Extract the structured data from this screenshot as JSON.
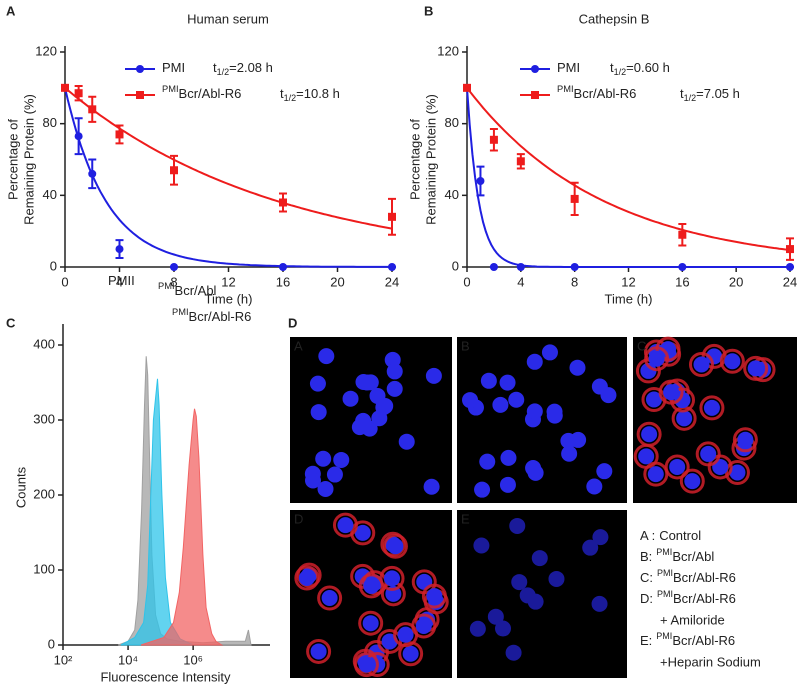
{
  "chart_data": [
    {
      "type": "line",
      "panel": "A",
      "title": "Human serum",
      "xlabel": "Time (h)",
      "ylabel": [
        "Percentage of",
        "Remaining Protein (%)"
      ],
      "xlim": [
        0,
        24
      ],
      "xticks": [
        0,
        4,
        8,
        12,
        16,
        20,
        24
      ],
      "ylim": [
        0,
        120
      ],
      "yticks": [
        0,
        40,
        80,
        120
      ],
      "series": [
        {
          "name": "PMI",
          "color": "#1f1fe0",
          "marker": "circle",
          "half_life": 2.08,
          "half_life_label": {
            "symbol": "t",
            "sub": "1/2",
            "text": "=2.08 h"
          },
          "x": [
            0,
            1,
            2,
            4,
            8,
            16,
            24
          ],
          "values": [
            100,
            73,
            52,
            10,
            0,
            0,
            0
          ],
          "errors": [
            0,
            10,
            8,
            5,
            0,
            0,
            0
          ]
        },
        {
          "name_prefix": "PMI",
          "name": "Bcr/Abl-R6",
          "color": "#ee1c1c",
          "marker": "square",
          "half_life": 10.8,
          "half_life_label": {
            "symbol": "t",
            "sub": "1/2",
            "text": "=10.8 h"
          },
          "x": [
            0,
            1,
            2,
            4,
            8,
            16,
            24
          ],
          "values": [
            100,
            97,
            88,
            74,
            54,
            36,
            28
          ],
          "errors": [
            0,
            4,
            7,
            5,
            8,
            5,
            10
          ]
        }
      ]
    },
    {
      "type": "line",
      "panel": "B",
      "title": "Cathepsin B",
      "xlabel": "Time (h)",
      "ylabel": [
        "Percentage of",
        "Remaining Protein (%)"
      ],
      "xlim": [
        0,
        24
      ],
      "xticks": [
        0,
        4,
        8,
        12,
        16,
        20,
        24
      ],
      "ylim": [
        0,
        120
      ],
      "yticks": [
        0,
        40,
        80,
        120
      ],
      "series": [
        {
          "name": "PMI",
          "color": "#1f1fe0",
          "marker": "circle",
          "half_life": 0.6,
          "half_life_label": {
            "symbol": "t",
            "sub": "1/2",
            "text": "=0.60 h"
          },
          "x": [
            0,
            1,
            2,
            4,
            8,
            16,
            24
          ],
          "values": [
            100,
            48,
            0,
            0,
            0,
            0,
            0
          ],
          "errors": [
            0,
            8,
            0,
            0,
            0,
            0,
            0
          ]
        },
        {
          "name_prefix": "PMI",
          "name": "Bcr/Abl-R6",
          "color": "#ee1c1c",
          "marker": "square",
          "half_life": 7.05,
          "half_life_label": {
            "symbol": "t",
            "sub": "1/2",
            "text": "=7.05 h"
          },
          "x": [
            0,
            2,
            4,
            8,
            16,
            24
          ],
          "values": [
            100,
            71,
            59,
            38,
            18,
            10
          ],
          "errors": [
            0,
            6,
            4,
            9,
            6,
            6
          ]
        }
      ]
    },
    {
      "type": "area",
      "panel": "C",
      "xlabel": "Fluorescence Intensity",
      "ylabel": [
        "Counts"
      ],
      "xscale": "log",
      "xlim": [
        100,
        200000000
      ],
      "xticks": [
        {
          "value": 100,
          "label": "10²"
        },
        {
          "value": 10000,
          "label": "10⁴"
        },
        {
          "value": 1000000,
          "label": "10⁶"
        }
      ],
      "ylim": [
        0,
        420
      ],
      "yticks": [
        0,
        100,
        200,
        300,
        400
      ],
      "series": [
        {
          "name": "PMII",
          "color": "#a0a0a0",
          "x": [
            5000,
            10000,
            16000,
            20000,
            26000,
            32000,
            36000,
            40000,
            46000,
            54000,
            70000,
            100000,
            160000,
            400000,
            2000000,
            10000000,
            40000000,
            50000000,
            60000000
          ],
          "values": [
            0,
            5,
            20,
            60,
            180,
            320,
            385,
            360,
            250,
            120,
            40,
            15,
            8,
            5,
            3,
            5,
            5,
            20,
            0
          ]
        },
        {
          "name_prefix": "PMI",
          "name": "Bcr/Abl",
          "color": "#2ec4ea",
          "x": [
            6000,
            16000,
            30000,
            40000,
            50000,
            60000,
            70000,
            80000,
            90000,
            110000,
            140000,
            200000,
            400000,
            1000000
          ],
          "values": [
            0,
            10,
            30,
            80,
            200,
            300,
            330,
            355,
            320,
            200,
            90,
            30,
            8,
            0
          ]
        },
        {
          "name_prefix": "PMI",
          "name": "Bcr/Abl-R6",
          "color": "#f26464",
          "x": [
            25000,
            125000,
            250000,
            375000,
            500000,
            750000,
            1000000,
            1100000,
            1250000,
            1500000,
            2000000,
            2500000,
            3750000,
            5000000,
            7500000
          ],
          "values": [
            0,
            10,
            30,
            70,
            130,
            240,
            300,
            315,
            305,
            250,
            120,
            50,
            15,
            5,
            0
          ]
        }
      ]
    }
  ],
  "panel_d": {
    "letter": "D",
    "images": [
      "A",
      "B",
      "C",
      "D",
      "E"
    ],
    "legend": [
      {
        "key": "A :",
        "text": "Control"
      },
      {
        "key": "B:",
        "sup": "PMI",
        "text": "Bcr/Abl"
      },
      {
        "key": "C:",
        "sup": "PMI",
        "text": "Bcr/Abl-R6"
      },
      {
        "key": "D:",
        "sup": "PMI",
        "text": "Bcr/Abl-R6",
        "line2": "+ Amiloride"
      },
      {
        "key": "E:",
        "sup": "PMI",
        "text": "Bcr/Abl-R6",
        "line2": "+Heparin Sodium"
      }
    ]
  }
}
